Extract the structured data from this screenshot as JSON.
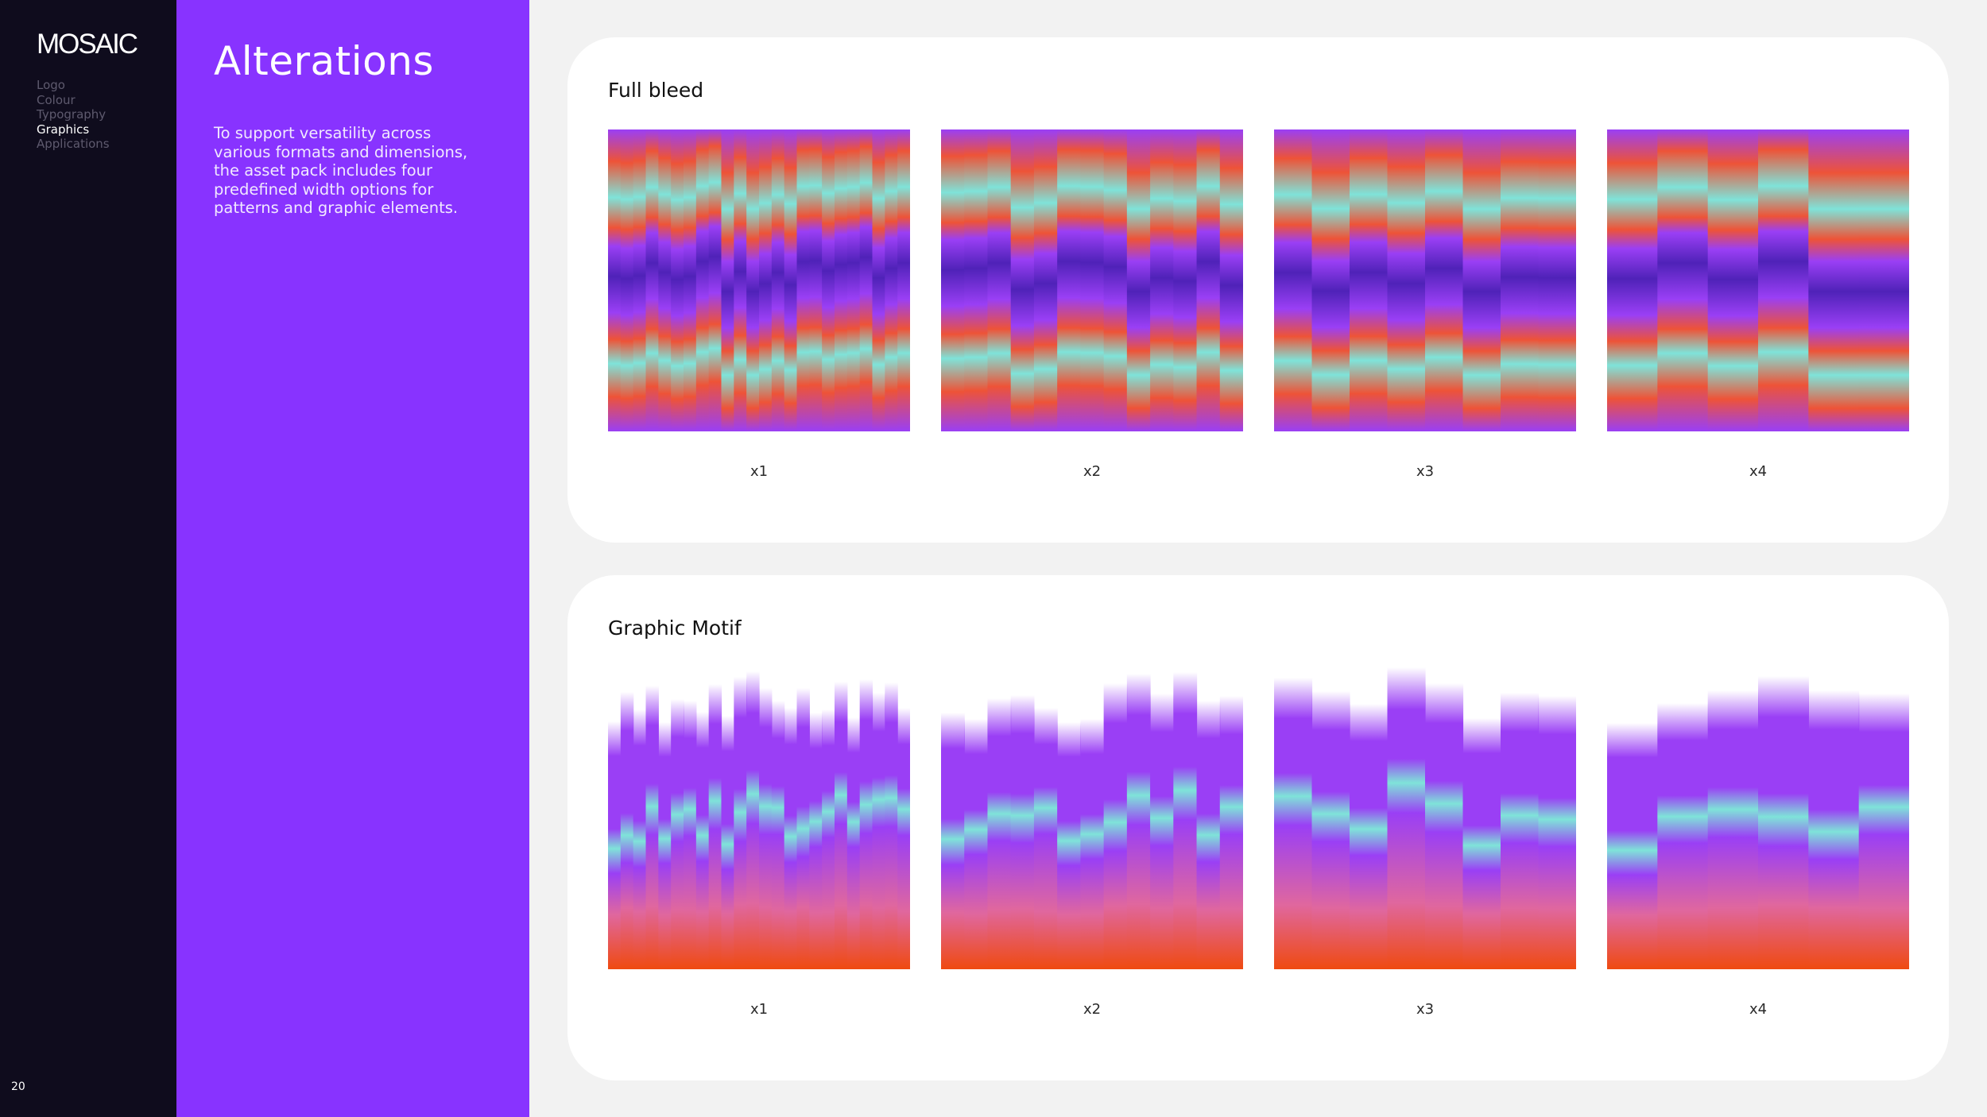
{
  "nav": {
    "brand": "MOSAIC",
    "items": [
      {
        "label": "Logo",
        "active": false
      },
      {
        "label": "Colour",
        "active": false
      },
      {
        "label": "Typography",
        "active": false
      },
      {
        "label": "Graphics",
        "active": true
      },
      {
        "label": "Applications",
        "active": false
      }
    ],
    "page_number": "20"
  },
  "intro": {
    "title": "Alterations",
    "description": "To support versatility across various formats and dimensions, the asset pack includes four predefined width options for patterns and graphic elements."
  },
  "sections": [
    {
      "title": "Full bleed",
      "style": "full-bleed",
      "variants": [
        {
          "label": "x1",
          "columns": 24
        },
        {
          "label": "x2",
          "columns": 13
        },
        {
          "label": "x3",
          "columns": 8
        },
        {
          "label": "x4",
          "columns": 6
        }
      ]
    },
    {
      "title": "Graphic Motif",
      "style": "motif",
      "variants": [
        {
          "label": "x1",
          "columns": 24
        },
        {
          "label": "x2",
          "columns": 13
        },
        {
          "label": "x3",
          "columns": 8
        },
        {
          "label": "x4",
          "columns": 6
        }
      ]
    }
  ],
  "colors": {
    "nav_bg": "#0f0c1d",
    "brand_purple": "#8833ff",
    "violet": "#9a3ff5",
    "orange_red": "#ee5337",
    "aqua": "#7fe3d9",
    "deep_violet": "#4f22b8",
    "orange": "#ef4a10"
  }
}
